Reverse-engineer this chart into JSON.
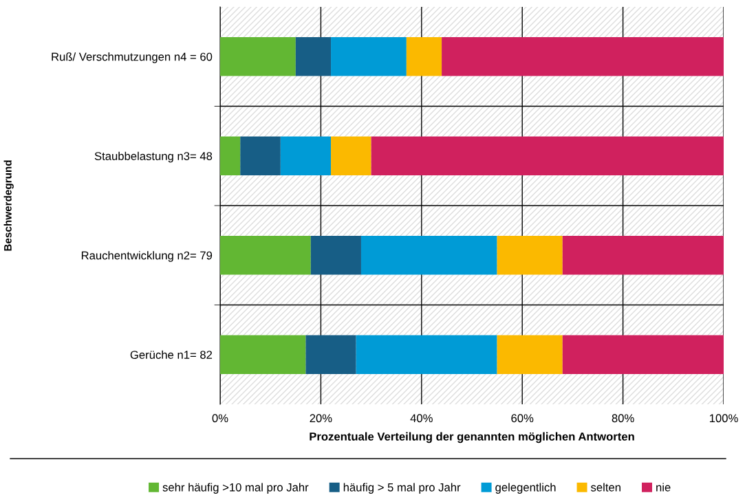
{
  "chart_data": {
    "type": "bar",
    "orientation": "horizontal",
    "stacked": true,
    "xlabel": "Prozentuale Verteilung der genannten möglichen Antworten",
    "ylabel": "Beschwerdegrund",
    "categories": [
      "Ruß/ Verschmutzungen n4 = 60",
      "Staubbelastung n3= 48",
      "Rauchentwicklung n2= 79",
      "Gerüche n1= 82"
    ],
    "series": [
      {
        "name": "sehr häufig >10 mal pro Jahr",
        "color": "#62b733",
        "values": [
          15,
          4,
          18,
          17
        ]
      },
      {
        "name": "häufig > 5 mal pro Jahr",
        "color": "#175e86",
        "values": [
          7,
          8,
          10,
          10
        ]
      },
      {
        "name": "gelegentlich",
        "color": "#009bd6",
        "values": [
          15,
          10,
          27,
          28
        ]
      },
      {
        "name": "selten",
        "color": "#fbb900",
        "values": [
          7,
          8,
          13,
          13
        ]
      },
      {
        "name": "nie",
        "color": "#d0215e",
        "values": [
          56,
          70,
          32,
          32
        ]
      }
    ],
    "xlim": [
      0,
      100
    ],
    "xticks": [
      {
        "value": 0,
        "label": "0%"
      },
      {
        "value": 20,
        "label": "20%"
      },
      {
        "value": 40,
        "label": "40%"
      },
      {
        "value": 60,
        "label": "60%"
      },
      {
        "value": 80,
        "label": "80%"
      },
      {
        "value": 100,
        "label": "100%"
      }
    ],
    "grid": true,
    "legend": "bottom"
  }
}
